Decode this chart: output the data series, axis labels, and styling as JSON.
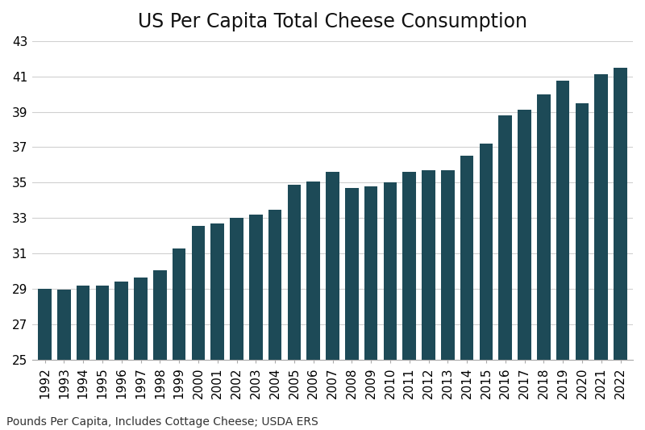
{
  "title": "US Per Capita Total Cheese Consumption",
  "subtitle": "Pounds Per Capita, Includes Cottage Cheese; USDA ERS",
  "years": [
    1992,
    1993,
    1994,
    1995,
    1996,
    1997,
    1998,
    1999,
    2000,
    2001,
    2002,
    2003,
    2004,
    2005,
    2006,
    2007,
    2008,
    2009,
    2010,
    2011,
    2012,
    2013,
    2014,
    2015,
    2016,
    2017,
    2018,
    2019,
    2020,
    2021,
    2022
  ],
  "values": [
    29.0,
    28.95,
    29.2,
    29.2,
    29.4,
    29.65,
    30.05,
    31.3,
    32.55,
    32.7,
    33.0,
    33.2,
    33.45,
    34.9,
    35.05,
    35.6,
    34.7,
    34.8,
    35.0,
    35.6,
    35.7,
    35.7,
    36.5,
    37.2,
    38.8,
    39.1,
    40.0,
    40.75,
    39.5,
    41.1,
    41.5
  ],
  "bar_color": "#1d4a57",
  "background_color": "#ffffff",
  "ymin": 25,
  "ymax": 43,
  "yticks": [
    25,
    27,
    29,
    31,
    33,
    35,
    37,
    39,
    41,
    43
  ],
  "grid_color": "#d0d0d0",
  "title_fontsize": 17,
  "tick_fontsize": 11,
  "subtitle_fontsize": 10,
  "bar_width": 0.7
}
